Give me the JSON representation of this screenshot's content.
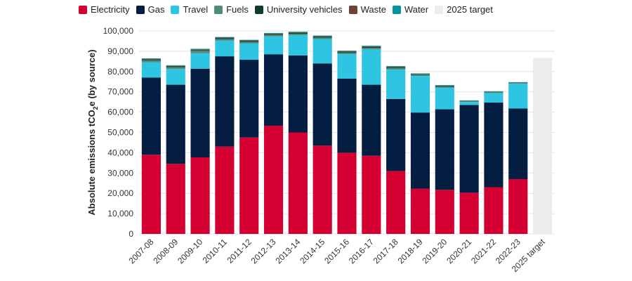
{
  "chart_data": {
    "type": "bar",
    "stacked": true,
    "title": "",
    "xlabel": "",
    "ylabel": "Absolute emissions tCO",
    "ylabel_sub": "2",
    "ylabel_suffix": "e (by source)",
    "ylim": [
      0,
      100000
    ],
    "yticks": [
      0,
      10000,
      20000,
      30000,
      40000,
      50000,
      60000,
      70000,
      80000,
      90000,
      100000
    ],
    "ytick_labels": [
      "0",
      "10,000",
      "20,000",
      "30,000",
      "40,000",
      "50,000",
      "60,000",
      "70,000",
      "80,000",
      "90,000",
      "100,000"
    ],
    "grid": true,
    "legend_position": "top",
    "categories": [
      "2007-08",
      "2008-09",
      "2009-10",
      "2010-11",
      "2011-12",
      "2012-13",
      "2013-14",
      "2014-15",
      "2015-16",
      "2016-17",
      "2017-18",
      "2018-19",
      "2019-20",
      "2020-21",
      "2021-22",
      "2022-23",
      "2025 target"
    ],
    "series": [
      {
        "name": "Electricity",
        "color": "#d50032",
        "values": [
          39000,
          34500,
          37700,
          43000,
          47500,
          53300,
          50000,
          43500,
          40000,
          38500,
          31000,
          22300,
          21700,
          20300,
          23000,
          27000,
          0
        ]
      },
      {
        "name": "Gas",
        "color": "#041e42",
        "values": [
          38000,
          39000,
          43700,
          44500,
          38300,
          35200,
          37900,
          40500,
          36500,
          35000,
          35500,
          37500,
          39700,
          43200,
          41700,
          34800,
          0
        ]
      },
      {
        "name": "Travel",
        "color": "#2ec5e2",
        "values": [
          7500,
          7700,
          7600,
          7700,
          8000,
          8800,
          10000,
          12000,
          12000,
          17500,
          14500,
          18000,
          10600,
          1500,
          4700,
          12200,
          0
        ]
      },
      {
        "name": "Fuels",
        "color": "#4e8d7e",
        "values": [
          1000,
          900,
          1200,
          800,
          800,
          700,
          700,
          700,
          800,
          700,
          700,
          500,
          500,
          300,
          400,
          300,
          0
        ]
      },
      {
        "name": "University vehicles",
        "color": "#0e3b2e",
        "values": [
          400,
          400,
          400,
          400,
          400,
          400,
          400,
          400,
          400,
          400,
          400,
          300,
          300,
          200,
          200,
          200,
          0
        ]
      },
      {
        "name": "Waste",
        "color": "#6b4436",
        "values": [
          300,
          300,
          300,
          300,
          300,
          300,
          300,
          300,
          300,
          300,
          300,
          200,
          200,
          100,
          100,
          100,
          0
        ]
      },
      {
        "name": "Water",
        "color": "#06929f",
        "values": [
          300,
          300,
          300,
          300,
          300,
          300,
          300,
          300,
          300,
          300,
          300,
          300,
          300,
          200,
          200,
          200,
          0
        ]
      },
      {
        "name": "2025 target",
        "color": "#ececec",
        "values": [
          0,
          0,
          0,
          0,
          0,
          0,
          0,
          0,
          0,
          0,
          0,
          0,
          0,
          0,
          0,
          0,
          86700
        ]
      }
    ]
  }
}
